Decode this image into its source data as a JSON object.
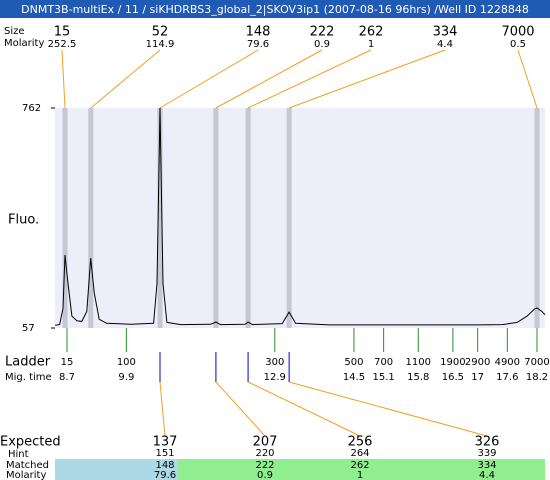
{
  "title": "DNMT3B-multiEx / 11 / siKHDRBS3_global_2|SKOV3ip1 (2007-08-16 96hrs) /Well ID 1228848",
  "peaks": {
    "size_label": "Size",
    "molarity_label": "Molarity",
    "items": [
      {
        "size": 15,
        "molarity": 252.5,
        "time": 8.66
      },
      {
        "size": 52,
        "molarity": 114.9,
        "time": 9.18
      },
      {
        "size": 148,
        "molarity": 79.6,
        "time": 10.58
      },
      {
        "size": 222,
        "molarity": 0.9,
        "time": 11.71
      },
      {
        "size": 262,
        "molarity": 1,
        "time": 12.36
      },
      {
        "size": 334,
        "molarity": 4.4,
        "time": 13.19
      },
      {
        "size": 7000,
        "molarity": 0.5,
        "time": 18.2
      }
    ]
  },
  "plot": {
    "ylabel": "Fluo.",
    "ylim": [
      57,
      762
    ],
    "yticks": [
      57,
      762
    ],
    "background": "#eeeefa",
    "band_color": "#c6c6d4",
    "trace_color": "#000000",
    "trace": {
      "x": [
        8.46,
        8.55,
        8.62,
        8.66,
        8.72,
        8.8,
        8.9,
        9.0,
        9.1,
        9.18,
        9.25,
        9.35,
        9.5,
        10.0,
        10.45,
        10.52,
        10.58,
        10.64,
        10.72,
        11.0,
        11.6,
        11.71,
        11.8,
        12.3,
        12.36,
        12.45,
        13.05,
        13.19,
        13.32,
        14,
        15,
        16,
        17,
        17.5,
        17.8,
        18.0,
        18.15,
        18.2,
        18.3,
        18.36
      ],
      "y": [
        66,
        68,
        120,
        291,
        200,
        95,
        80,
        78,
        110,
        281,
        170,
        85,
        72,
        69,
        72,
        200,
        762,
        200,
        75,
        68,
        69,
        76,
        68,
        69,
        76,
        68,
        71,
        108,
        72,
        67,
        67,
        67,
        67,
        68,
        75,
        95,
        118,
        121,
        110,
        100
      ]
    }
  },
  "ladder": {
    "label": "Ladder",
    "time_label": "Mig. time",
    "color": "#2e8b2e",
    "sizes": [
      15,
      100,
      300,
      500,
      700,
      1100,
      1900,
      2900,
      4900,
      7000
    ],
    "times": [
      8.7,
      9.9,
      12.9,
      14.5,
      15.1,
      15.8,
      16.5,
      17,
      17.6,
      18.2
    ]
  },
  "matches": {
    "expected_label": "Expected",
    "hint_label": "Hint",
    "matched_label": "Matched",
    "molarity_label": "Molarity",
    "tick_color": "#0000cc",
    "columns": [
      {
        "expected": 137,
        "hint": 151,
        "matched": 148,
        "molarity": 79.6,
        "time": 10.58,
        "expected_color": "#ff0000",
        "background": "#add8e6"
      },
      {
        "expected": 207,
        "hint": 220,
        "matched": 222,
        "molarity": 0.9,
        "time": 11.71,
        "expected_color": "#000000",
        "background": "#90ee90"
      },
      {
        "expected": 256,
        "hint": 264,
        "matched": 262,
        "molarity": 1,
        "time": 12.36,
        "expected_color": "#000000",
        "background": "#90ee90"
      },
      {
        "expected": 326,
        "hint": 339,
        "matched": 334,
        "molarity": 4.4,
        "time": 13.19,
        "expected_color": "#ff0000",
        "background": "#90ee90"
      }
    ]
  }
}
